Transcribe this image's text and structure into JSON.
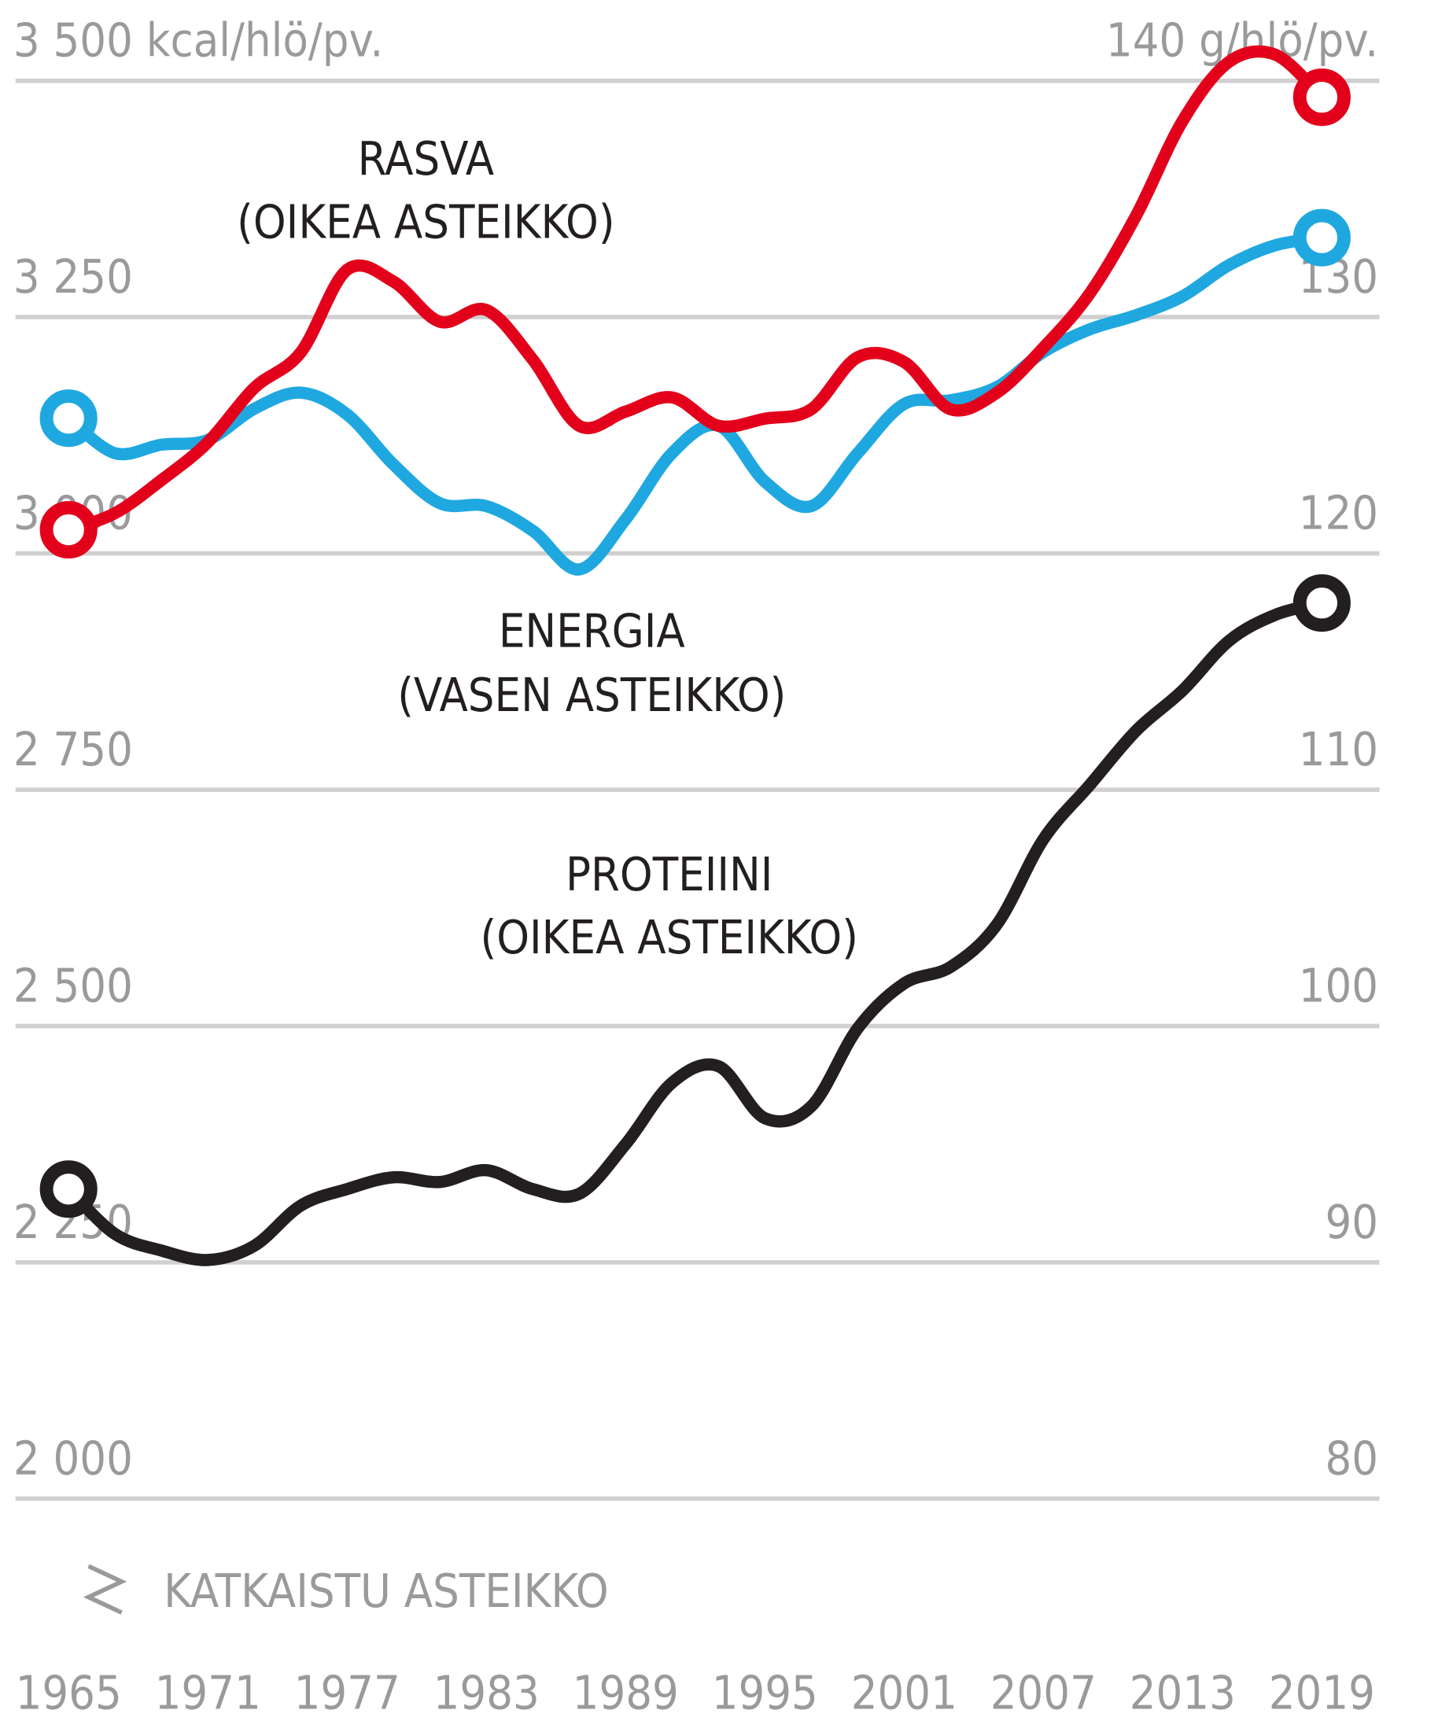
{
  "chart_data": {
    "type": "line",
    "note": "KATKAISTU ASTEIKKO",
    "xlim": [
      1965,
      2019
    ],
    "xticks": [
      1965,
      1971,
      1977,
      1983,
      1989,
      1995,
      2001,
      2007,
      2013,
      2019
    ],
    "x": [
      1965,
      1967,
      1969,
      1971,
      1973,
      1975,
      1977,
      1979,
      1981,
      1983,
      1985,
      1987,
      1989,
      1991,
      1993,
      1995,
      1997,
      1999,
      2001,
      2003,
      2005,
      2007,
      2009,
      2011,
      2013,
      2015,
      2017,
      2019
    ],
    "ylim": [
      2000,
      3500
    ],
    "yticks": [
      {
        "value": 2000,
        "label": "2 000"
      },
      {
        "value": 2250,
        "label": "2 250"
      },
      {
        "value": 2500,
        "label": "2 500"
      },
      {
        "value": 2750,
        "label": "2 750"
      },
      {
        "value": 3000,
        "label": "3 000"
      },
      {
        "value": 3250,
        "label": "3 250"
      },
      {
        "value": 3500,
        "label": "3 500 kcal/hlö/pv."
      }
    ],
    "y2lim": [
      80,
      140
    ],
    "y2ticks": [
      80,
      90,
      100,
      110,
      120,
      130,
      {
        "value": 140,
        "label": "140 g/hlö/pv."
      }
    ],
    "grid": true,
    "series": [
      {
        "name": "ENERGIA",
        "scale": "(VASEN ASTEIKKO)",
        "color": "#1fa8e0",
        "axis": "y",
        "values": [
          3143,
          3106,
          3115,
          3120,
          3153,
          3170,
          3147,
          3094,
          3053,
          3050,
          3024,
          2983,
          3036,
          3106,
          3135,
          3076,
          3050,
          3106,
          3158,
          3162,
          3176,
          3213,
          3237,
          3252,
          3272,
          3305,
          3326,
          3334
        ]
      },
      {
        "name": "RASVA",
        "scale": "(OIKEA ASTEIKKO)",
        "color": "#e3001b",
        "axis": "y2",
        "values": [
          121.0,
          121.7,
          123.1,
          124.7,
          127.0,
          128.5,
          132.0,
          131.5,
          129.8,
          130.3,
          128.2,
          125.4,
          126.0,
          126.6,
          125.4,
          125.7,
          126.1,
          128.3,
          128.1,
          126.1,
          126.8,
          128.7,
          131.0,
          134.3,
          138.3,
          140.8,
          141.1,
          139.3
        ]
      },
      {
        "name": "PROTEIINI",
        "scale": "(OIKEA ASTEIKKO)",
        "color": "#231f20",
        "axis": "y2",
        "values": [
          93.1,
          91.2,
          90.5,
          90.1,
          90.7,
          92.4,
          93.1,
          93.6,
          93.4,
          93.9,
          93.1,
          92.9,
          95.0,
          97.6,
          98.3,
          96.1,
          96.6,
          99.9,
          101.8,
          102.5,
          104.3,
          107.9,
          110.2,
          112.5,
          114.2,
          116.3,
          117.4,
          117.9
        ]
      }
    ]
  }
}
